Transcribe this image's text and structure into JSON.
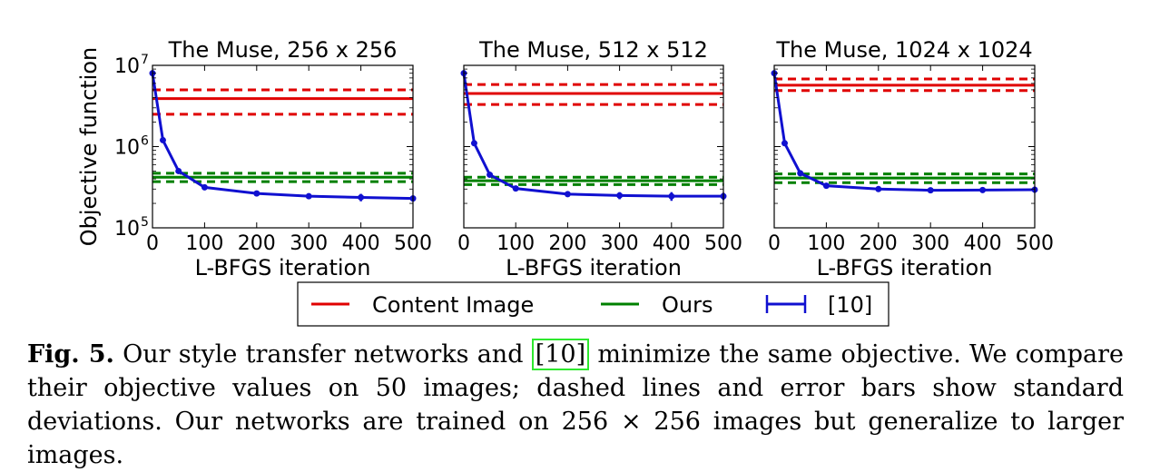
{
  "chart_data": [
    {
      "type": "line",
      "title": "The Muse, 256 x 256",
      "xlabel": "L-BFGS iteration",
      "ylabel": "Objective function",
      "y_scale": "log",
      "xlim": [
        0,
        500
      ],
      "ylim": [
        100000,
        10000000
      ],
      "x_ticks": [
        "0",
        "100",
        "200",
        "300",
        "400",
        "500"
      ],
      "y_ticks": [
        {
          "base": "10",
          "exp": "5",
          "value": 100000
        },
        {
          "base": "10",
          "exp": "6",
          "value": 1000000
        },
        {
          "base": "10",
          "exp": "7",
          "value": 10000000
        }
      ],
      "grid": false,
      "series": [
        {
          "name": "Content Image",
          "color": "#e00000",
          "style": "hline",
          "value": 3900000,
          "std_low": 2500000,
          "std_high": 5000000
        },
        {
          "name": "Ours",
          "color": "#008000",
          "style": "hline",
          "value": 420000,
          "std_low": 370000,
          "std_high": 470000
        },
        {
          "name": "[10]",
          "color": "#1010d0",
          "style": "errorbar",
          "x": [
            0,
            20,
            50,
            100,
            200,
            300,
            400,
            500
          ],
          "y": [
            8000000,
            1200000,
            500000,
            315000,
            265000,
            245000,
            237000,
            230000
          ],
          "err": [
            0,
            0,
            0,
            15000,
            15000,
            20000,
            25000,
            20000
          ]
        }
      ]
    },
    {
      "type": "line",
      "title": "The Muse, 512 x 512",
      "xlabel": "L-BFGS iteration",
      "ylabel": "",
      "y_scale": "log",
      "xlim": [
        0,
        500
      ],
      "ylim": [
        100000,
        10000000
      ],
      "x_ticks": [
        "0",
        "100",
        "200",
        "300",
        "400",
        "500"
      ],
      "y_ticks": [],
      "grid": false,
      "series": [
        {
          "name": "Content Image",
          "color": "#e00000",
          "style": "hline",
          "value": 4500000,
          "std_low": 3300000,
          "std_high": 5800000
        },
        {
          "name": "Ours",
          "color": "#008000",
          "style": "hline",
          "value": 380000,
          "std_low": 340000,
          "std_high": 420000
        },
        {
          "name": "[10]",
          "color": "#1010d0",
          "style": "errorbar",
          "x": [
            0,
            20,
            50,
            100,
            200,
            300,
            400,
            500
          ],
          "y": [
            8000000,
            1100000,
            450000,
            305000,
            260000,
            250000,
            245000,
            245000
          ],
          "err": [
            0,
            0,
            0,
            15000,
            20000,
            25000,
            30000,
            25000
          ]
        }
      ]
    },
    {
      "type": "line",
      "title": "The Muse, 1024 x 1024",
      "xlabel": "L-BFGS iteration",
      "ylabel": "",
      "y_scale": "log",
      "xlim": [
        0,
        500
      ],
      "ylim": [
        100000,
        10000000
      ],
      "x_ticks": [
        "0",
        "100",
        "200",
        "300",
        "400",
        "500"
      ],
      "y_ticks": [],
      "grid": false,
      "series": [
        {
          "name": "Content Image",
          "color": "#e00000",
          "style": "hline",
          "value": 5700000,
          "std_low": 4900000,
          "std_high": 6800000
        },
        {
          "name": "Ours",
          "color": "#008000",
          "style": "hline",
          "value": 410000,
          "std_low": 360000,
          "std_high": 460000
        },
        {
          "name": "[10]",
          "color": "#1010d0",
          "style": "errorbar",
          "x": [
            0,
            20,
            50,
            100,
            200,
            300,
            400,
            500
          ],
          "y": [
            8000000,
            1100000,
            470000,
            330000,
            300000,
            290000,
            292000,
            295000
          ],
          "err": [
            0,
            0,
            0,
            15000,
            20000,
            20000,
            20000,
            25000
          ]
        }
      ]
    }
  ],
  "legend": {
    "placement": "bottom-center",
    "items": [
      {
        "label": "Content Image",
        "color": "#e00000",
        "marker": "line"
      },
      {
        "label": "Ours",
        "color": "#008000",
        "marker": "line"
      },
      {
        "label": "[10]",
        "color": "#1010d0",
        "marker": "errorbar"
      }
    ]
  },
  "caption": {
    "label": "Fig. 5.",
    "text_before_ref": " Our style transfer networks and ",
    "ref": "[10]",
    "text_after_ref": " minimize the same objective. We compare their objective values on 50 images; dashed lines and error bars show standard deviations. Our networks are trained on 256 × 256 images but generalize to larger images."
  }
}
